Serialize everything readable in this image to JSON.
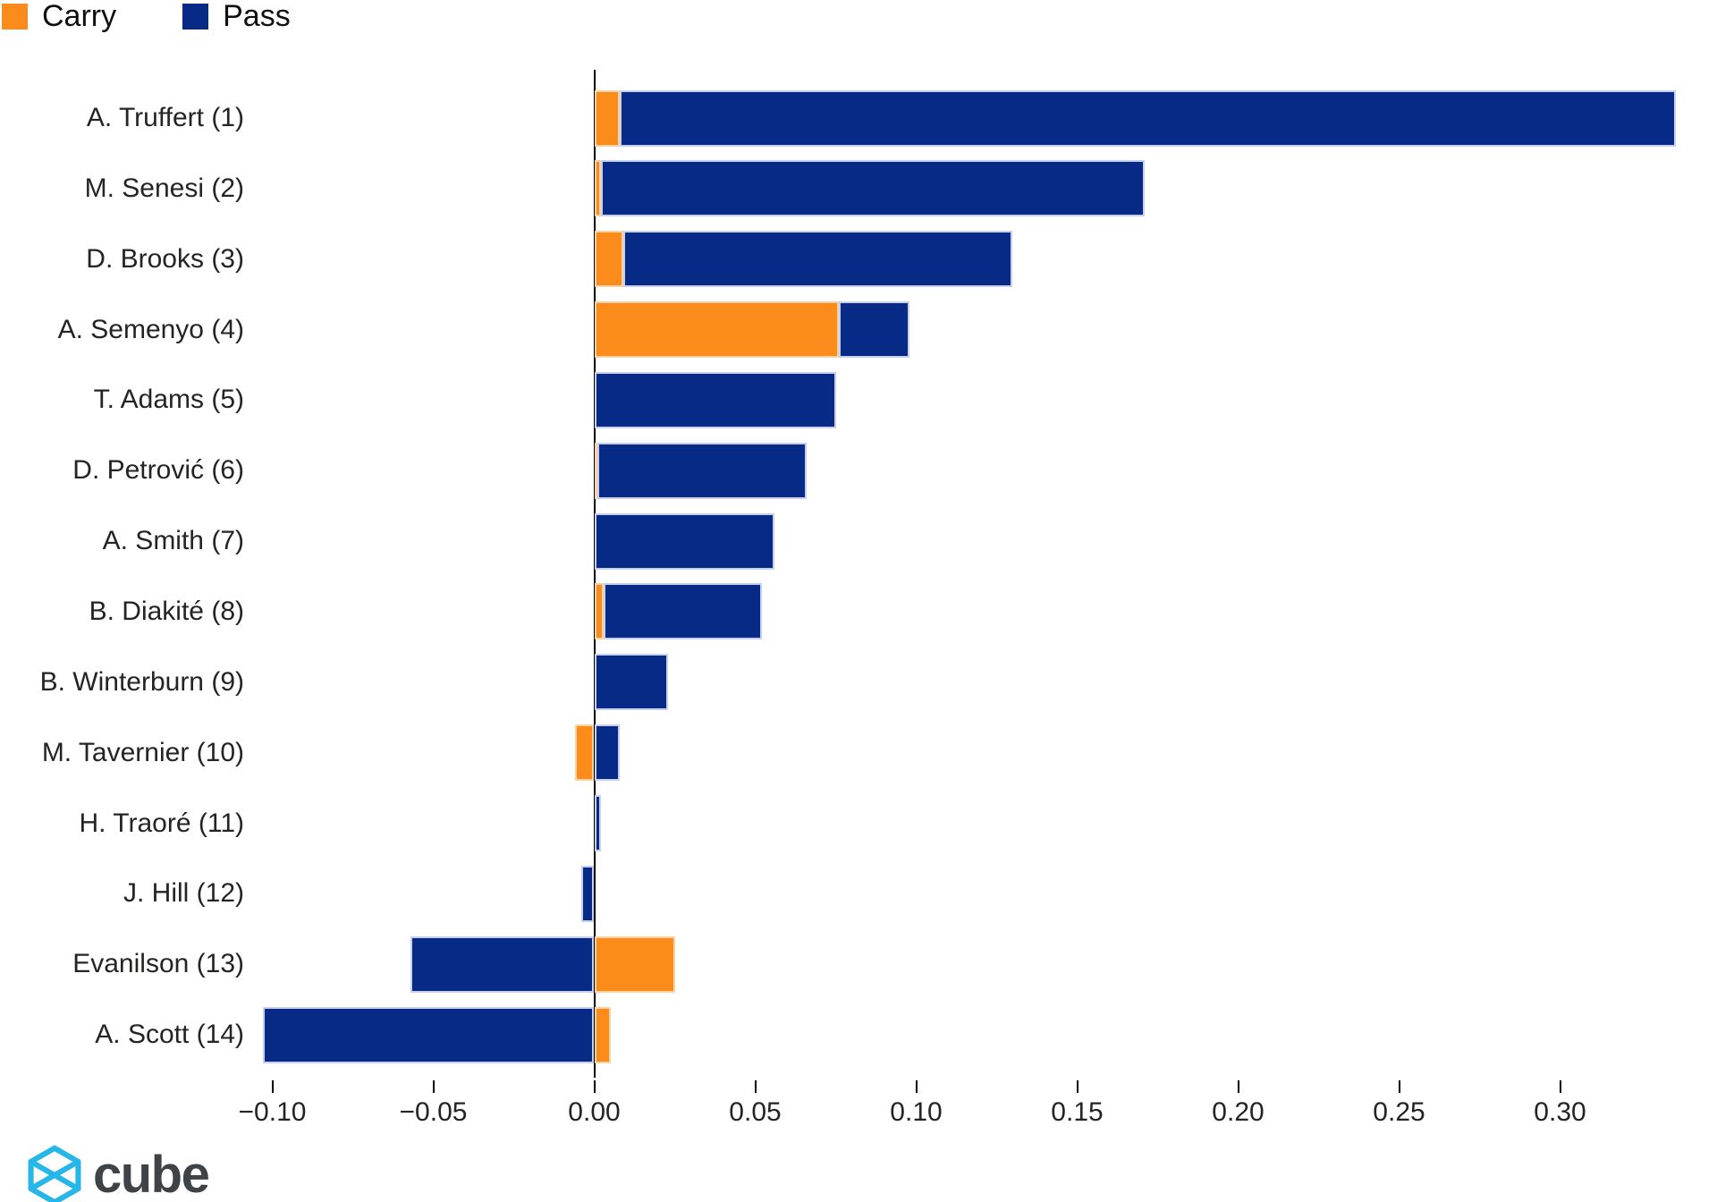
{
  "legend": {
    "items": [
      {
        "label": "Carry",
        "color": "#FB8B1B"
      },
      {
        "label": "Pass",
        "color": "#072A87"
      }
    ]
  },
  "logo": {
    "text": "cube",
    "icon": "cube-wireframe-icon",
    "icon_color": "#26B6E8"
  },
  "chart_data": {
    "type": "bar",
    "orientation": "horizontal",
    "stacked": true,
    "title": "",
    "xlabel": "",
    "ylabel": "",
    "grid": false,
    "legend_position": "top-left",
    "categories": [
      "A. Truffert (1)",
      "M. Senesi (2)",
      "D. Brooks (3)",
      "A. Semenyo (4)",
      "T. Adams (5)",
      "D. Petrović (6)",
      "A. Smith (7)",
      "B. Diakité (8)",
      "B. Winterburn (9)",
      "M. Tavernier (10)",
      "H. Traoré (11)",
      "J. Hill (12)",
      "Evanilson (13)",
      "A. Scott (14)"
    ],
    "series": [
      {
        "name": "Carry",
        "color": "#FB8B1B",
        "values": [
          0.008,
          0.002,
          0.009,
          0.076,
          0,
          0.001,
          0,
          0.003,
          0,
          -0.006,
          0,
          0,
          0.025,
          0.005
        ]
      },
      {
        "name": "Pass",
        "color": "#072A87",
        "values": [
          0.328,
          0.169,
          0.121,
          0.022,
          0.075,
          0.065,
          0.056,
          0.049,
          0.023,
          0.008,
          0.002,
          -0.004,
          -0.057,
          -0.103
        ]
      }
    ],
    "xlim": [
      -0.108,
      0.349
    ],
    "xticks": {
      "values": [
        -0.1,
        -0.05,
        0.0,
        0.05,
        0.1,
        0.15,
        0.2,
        0.25,
        0.3
      ],
      "labels": [
        "−0.10",
        "−0.05",
        "0.00",
        "0.05",
        "0.10",
        "0.15",
        "0.20",
        "0.25",
        "0.30"
      ]
    }
  }
}
